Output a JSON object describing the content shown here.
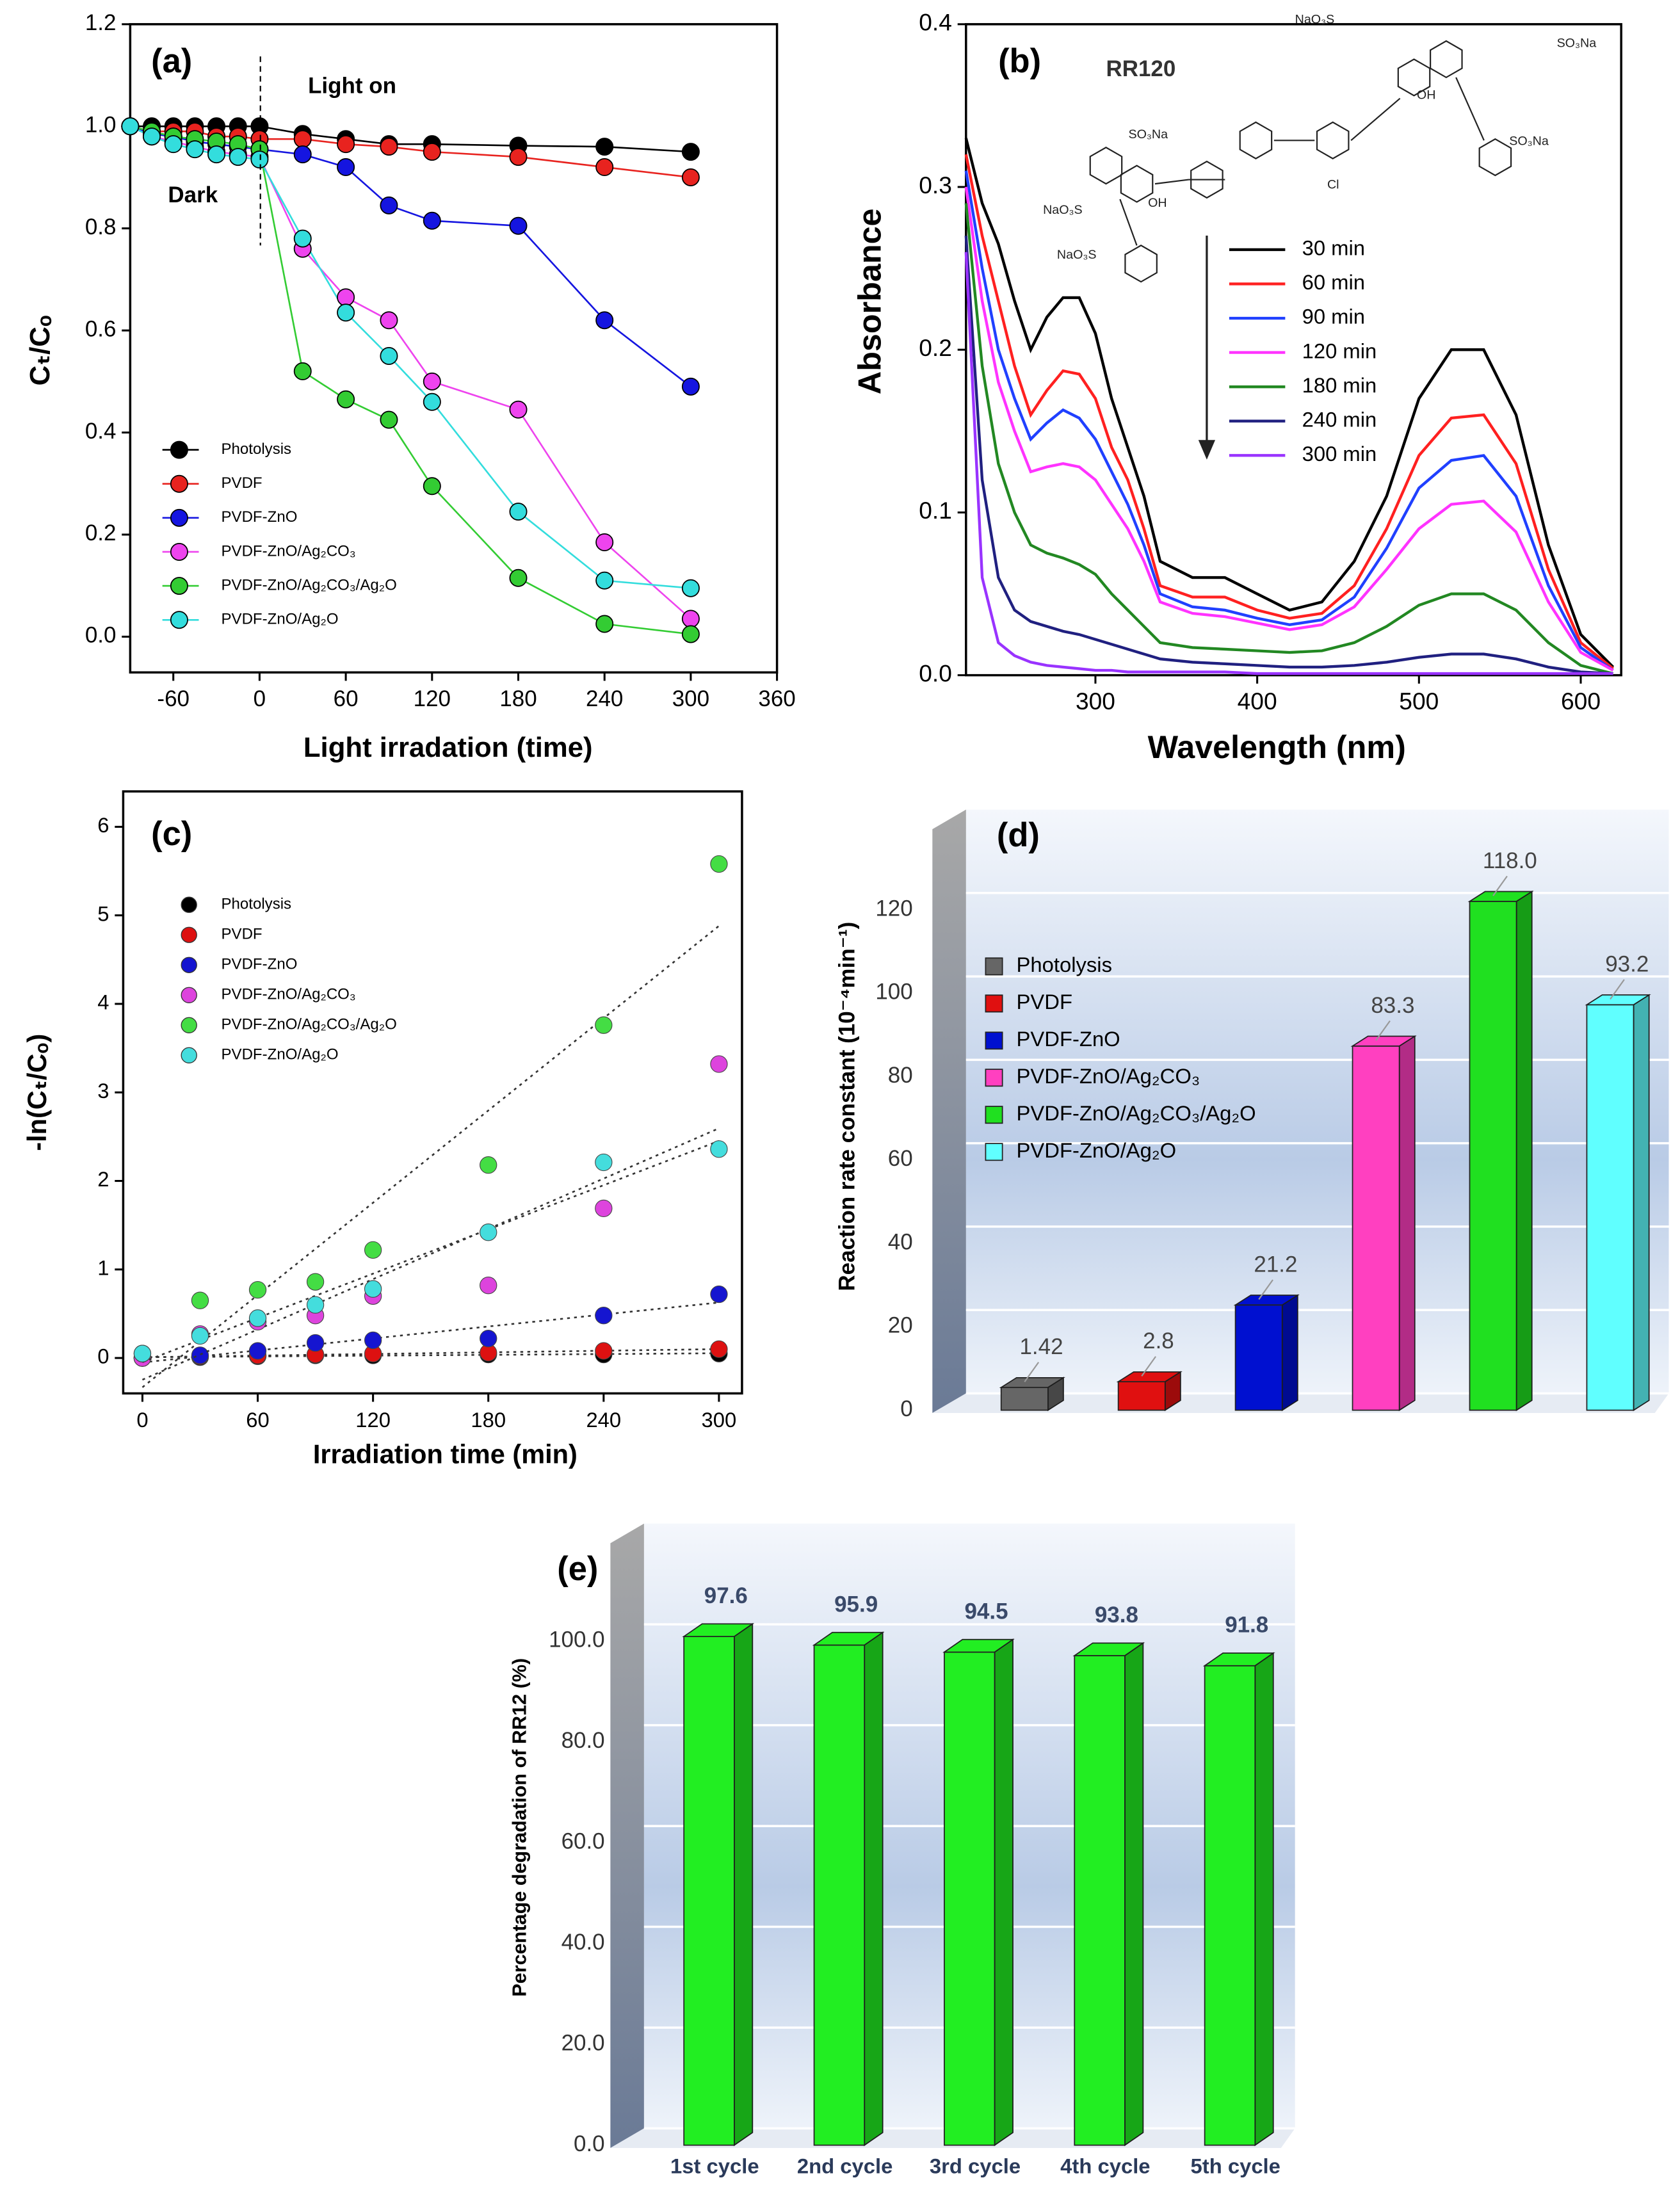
{
  "chart_data": [
    {
      "type": "line",
      "title": "(a)",
      "x_label": "Light irradation (time)",
      "y_label": "Cₜ/Cₒ",
      "annotations": [
        "Light on",
        "Dark"
      ],
      "markers": true,
      "x": [
        -90,
        -75,
        -60,
        -45,
        -30,
        -15,
        0,
        30,
        60,
        90,
        120,
        180,
        240,
        300
      ],
      "series": [
        {
          "name": "Photolysis",
          "color": "#000000",
          "values": [
            1.0,
            1.0,
            1.0,
            1.0,
            1.0,
            1.0,
            1.0,
            0.985,
            0.975,
            0.965,
            0.965,
            0.962,
            0.96,
            0.95
          ]
        },
        {
          "name": "PVDF",
          "color": "#e8231f",
          "values": [
            1.0,
            0.99,
            0.99,
            0.99,
            0.98,
            0.98,
            0.975,
            0.975,
            0.965,
            0.96,
            0.95,
            0.94,
            0.92,
            0.9
          ]
        },
        {
          "name": "PVDF-ZnO",
          "color": "#1515e0",
          "values": [
            1.0,
            0.985,
            0.98,
            0.97,
            0.965,
            0.96,
            0.955,
            0.945,
            0.92,
            0.845,
            0.815,
            0.805,
            0.62,
            0.49
          ]
        },
        {
          "name": "PVDF-ZnO/Ag₂CO₃",
          "color": "#ee44ee",
          "values": [
            1.0,
            0.98,
            0.97,
            0.96,
            0.95,
            0.945,
            0.94,
            0.76,
            0.665,
            0.62,
            0.5,
            0.445,
            0.185,
            0.035
          ]
        },
        {
          "name": "PVDF-ZnO/Ag₂CO₃/Ag₂O",
          "color": "#33cc33",
          "values": [
            1.0,
            0.99,
            0.98,
            0.975,
            0.97,
            0.965,
            0.955,
            0.52,
            0.465,
            0.425,
            0.295,
            0.115,
            0.025,
            0.005
          ]
        },
        {
          "name": "PVDF-ZnO/Ag₂O",
          "color": "#33dddd",
          "values": [
            1.0,
            0.98,
            0.965,
            0.955,
            0.945,
            0.94,
            0.935,
            0.78,
            0.635,
            0.55,
            0.46,
            0.245,
            0.11,
            0.095
          ]
        }
      ],
      "xlim": [
        -90,
        360
      ],
      "ylim": [
        -0.07,
        1.2
      ],
      "xticks": [
        -60,
        0,
        60,
        120,
        180,
        240,
        300,
        360
      ],
      "yticks": [
        {
          "value": 0,
          "label": "0.0"
        },
        0.2,
        0.4,
        0.6,
        0.8,
        {
          "value": 1,
          "label": "1.0"
        },
        1.2
      ]
    },
    {
      "type": "line",
      "title": "(b)",
      "x_label": "Wavelength (nm)",
      "y_label": "Absorbance",
      "annotations": [
        "RR120"
      ],
      "markers": false,
      "structure_labels": [
        "NaO₃S",
        "SO₃Na",
        "SO₃Na",
        "NaO₃S",
        "NaO₃S",
        "SO₃Na",
        "OH",
        "OH",
        "Cl"
      ],
      "x": [
        220,
        230,
        240,
        250,
        260,
        270,
        280,
        290,
        300,
        310,
        320,
        330,
        340,
        360,
        380,
        400,
        420,
        440,
        460,
        480,
        500,
        520,
        540,
        560,
        580,
        600,
        620
      ],
      "series": [
        {
          "name": "30 min",
          "color": "#000000",
          "values": [
            0.33,
            0.29,
            0.265,
            0.23,
            0.2,
            0.22,
            0.232,
            0.232,
            0.21,
            0.17,
            0.14,
            0.11,
            0.07,
            0.06,
            0.06,
            0.05,
            0.04,
            0.045,
            0.07,
            0.11,
            0.17,
            0.2,
            0.2,
            0.16,
            0.08,
            0.025,
            0.005
          ]
        },
        {
          "name": "60 min",
          "color": "#ff2020",
          "values": [
            0.32,
            0.27,
            0.23,
            0.19,
            0.16,
            0.175,
            0.187,
            0.185,
            0.17,
            0.14,
            0.12,
            0.09,
            0.055,
            0.048,
            0.048,
            0.04,
            0.035,
            0.038,
            0.055,
            0.09,
            0.135,
            0.158,
            0.16,
            0.13,
            0.065,
            0.02,
            0.004
          ]
        },
        {
          "name": "90 min",
          "color": "#2040ff",
          "values": [
            0.31,
            0.25,
            0.2,
            0.17,
            0.145,
            0.155,
            0.163,
            0.158,
            0.145,
            0.125,
            0.105,
            0.08,
            0.05,
            0.042,
            0.04,
            0.035,
            0.031,
            0.034,
            0.048,
            0.078,
            0.115,
            0.132,
            0.135,
            0.11,
            0.055,
            0.017,
            0.003
          ]
        },
        {
          "name": "120 min",
          "color": "#ff33ff",
          "values": [
            0.3,
            0.23,
            0.18,
            0.15,
            0.125,
            0.128,
            0.13,
            0.128,
            0.12,
            0.105,
            0.09,
            0.07,
            0.045,
            0.038,
            0.036,
            0.032,
            0.028,
            0.031,
            0.042,
            0.065,
            0.09,
            0.105,
            0.107,
            0.088,
            0.045,
            0.014,
            0.003
          ]
        },
        {
          "name": "180 min",
          "color": "#228822",
          "values": [
            0.29,
            0.19,
            0.13,
            0.1,
            0.08,
            0.075,
            0.072,
            0.068,
            0.062,
            0.05,
            0.04,
            0.03,
            0.02,
            0.017,
            0.016,
            0.015,
            0.014,
            0.015,
            0.02,
            0.03,
            0.043,
            0.05,
            0.05,
            0.04,
            0.02,
            0.006,
            0.001
          ]
        },
        {
          "name": "240 min",
          "color": "#202080",
          "values": [
            0.27,
            0.12,
            0.06,
            0.04,
            0.033,
            0.03,
            0.027,
            0.025,
            0.022,
            0.019,
            0.016,
            0.013,
            0.01,
            0.008,
            0.007,
            0.006,
            0.005,
            0.005,
            0.006,
            0.008,
            0.011,
            0.013,
            0.013,
            0.01,
            0.005,
            0.002,
            0.001
          ]
        },
        {
          "name": "300 min",
          "color": "#9933ff",
          "values": [
            0.26,
            0.06,
            0.02,
            0.012,
            0.008,
            0.006,
            0.005,
            0.004,
            0.003,
            0.003,
            0.002,
            0.002,
            0.002,
            0.002,
            0.002,
            0.001,
            0.001,
            0.001,
            0.001,
            0.001,
            0.001,
            0.001,
            0.001,
            0.001,
            0.001,
            0.001,
            0.001
          ]
        }
      ],
      "xlim": [
        220,
        625
      ],
      "ylim": [
        0,
        0.4
      ],
      "xticks": [
        300,
        400,
        500,
        600
      ],
      "yticks": [
        {
          "value": 0,
          "label": "0.0"
        },
        0.1,
        0.2,
        0.3,
        0.4
      ]
    },
    {
      "type": "scatter",
      "title": "(c)",
      "x_label": "Irradiation time (min)",
      "y_label": "-ln(Cₜ/Cₒ)",
      "trendline": "linear",
      "x": [
        0,
        30,
        60,
        90,
        120,
        180,
        240,
        300
      ],
      "series": [
        {
          "name": "Photolysis",
          "color": "#000000",
          "values": [
            0,
            0.01,
            0.02,
            0.03,
            0.03,
            0.04,
            0.04,
            0.05
          ]
        },
        {
          "name": "PVDF",
          "color": "#dd1111",
          "values": [
            0,
            0.02,
            0.03,
            0.04,
            0.05,
            0.06,
            0.08,
            0.1
          ]
        },
        {
          "name": "PVDF-ZnO",
          "color": "#1515d0",
          "values": [
            0,
            0.03,
            0.08,
            0.17,
            0.2,
            0.22,
            0.48,
            0.72
          ]
        },
        {
          "name": "PVDF-ZnO/Ag₂CO₃",
          "color": "#dd44dd",
          "values": [
            0,
            0.27,
            0.41,
            0.48,
            0.7,
            0.82,
            1.69,
            3.32
          ]
        },
        {
          "name": "PVDF-ZnO/Ag₂CO₃/Ag₂O",
          "color": "#44dd44",
          "values": [
            0.05,
            0.65,
            0.77,
            0.86,
            1.22,
            2.18,
            3.76,
            5.58
          ]
        },
        {
          "name": "PVDF-ZnO/Ag₂O",
          "color": "#44dddd",
          "values": [
            0.05,
            0.25,
            0.45,
            0.6,
            0.78,
            1.42,
            2.21,
            2.36
          ]
        }
      ],
      "xlim": [
        -10,
        312
      ],
      "ylim": [
        -0.4,
        6.4
      ],
      "xticks": [
        0,
        60,
        120,
        180,
        240,
        300
      ],
      "yticks": [
        0,
        1,
        2,
        3,
        4,
        5,
        6
      ]
    },
    {
      "type": "bar3d",
      "title": "(d)",
      "y_label": "Reaction rate constant (10⁻⁴min⁻¹)",
      "categories": [
        "Photolysis",
        "PVDF",
        "PVDF-ZnO",
        "PVDF-ZnO/Ag₂CO₃",
        "PVDF-ZnO/Ag₂CO₃/Ag₂O",
        "PVDF-ZnO/Ag₂O"
      ],
      "values": [
        1.42,
        2.8,
        21.2,
        83.3,
        118.0,
        93.2
      ],
      "value_labels": [
        "1.42",
        "2.8",
        "21.2",
        "83.3",
        "118.0",
        "93.2"
      ],
      "colors": [
        "#666666",
        "#e01010",
        "#0010d0",
        "#ff40c0",
        "#20e020",
        "#60ffff"
      ],
      "legend": true,
      "grid": true,
      "ylim": [
        0,
        140
      ],
      "yticks": [
        0,
        20,
        40,
        60,
        80,
        100,
        120
      ]
    },
    {
      "type": "bar3d",
      "title": "(e)",
      "y_label": "Percentage degradation of RR12 (%)",
      "categories": [
        "1st cycle",
        "2nd cycle",
        "3rd cycle",
        "4th cycle",
        "5th cycle"
      ],
      "values": [
        97.6,
        95.9,
        94.5,
        93.8,
        91.8
      ],
      "color": "#22ee22",
      "legend": false,
      "grid": true,
      "ylim": [
        0,
        120
      ],
      "yticks": [
        {
          "value": 0,
          "label": "0.0"
        },
        {
          "value": 20,
          "label": "20.0"
        },
        {
          "value": 40,
          "label": "40.0"
        },
        {
          "value": 60,
          "label": "60.0"
        },
        {
          "value": 80,
          "label": "80.0"
        },
        {
          "value": 100,
          "label": "100.0"
        }
      ]
    }
  ]
}
